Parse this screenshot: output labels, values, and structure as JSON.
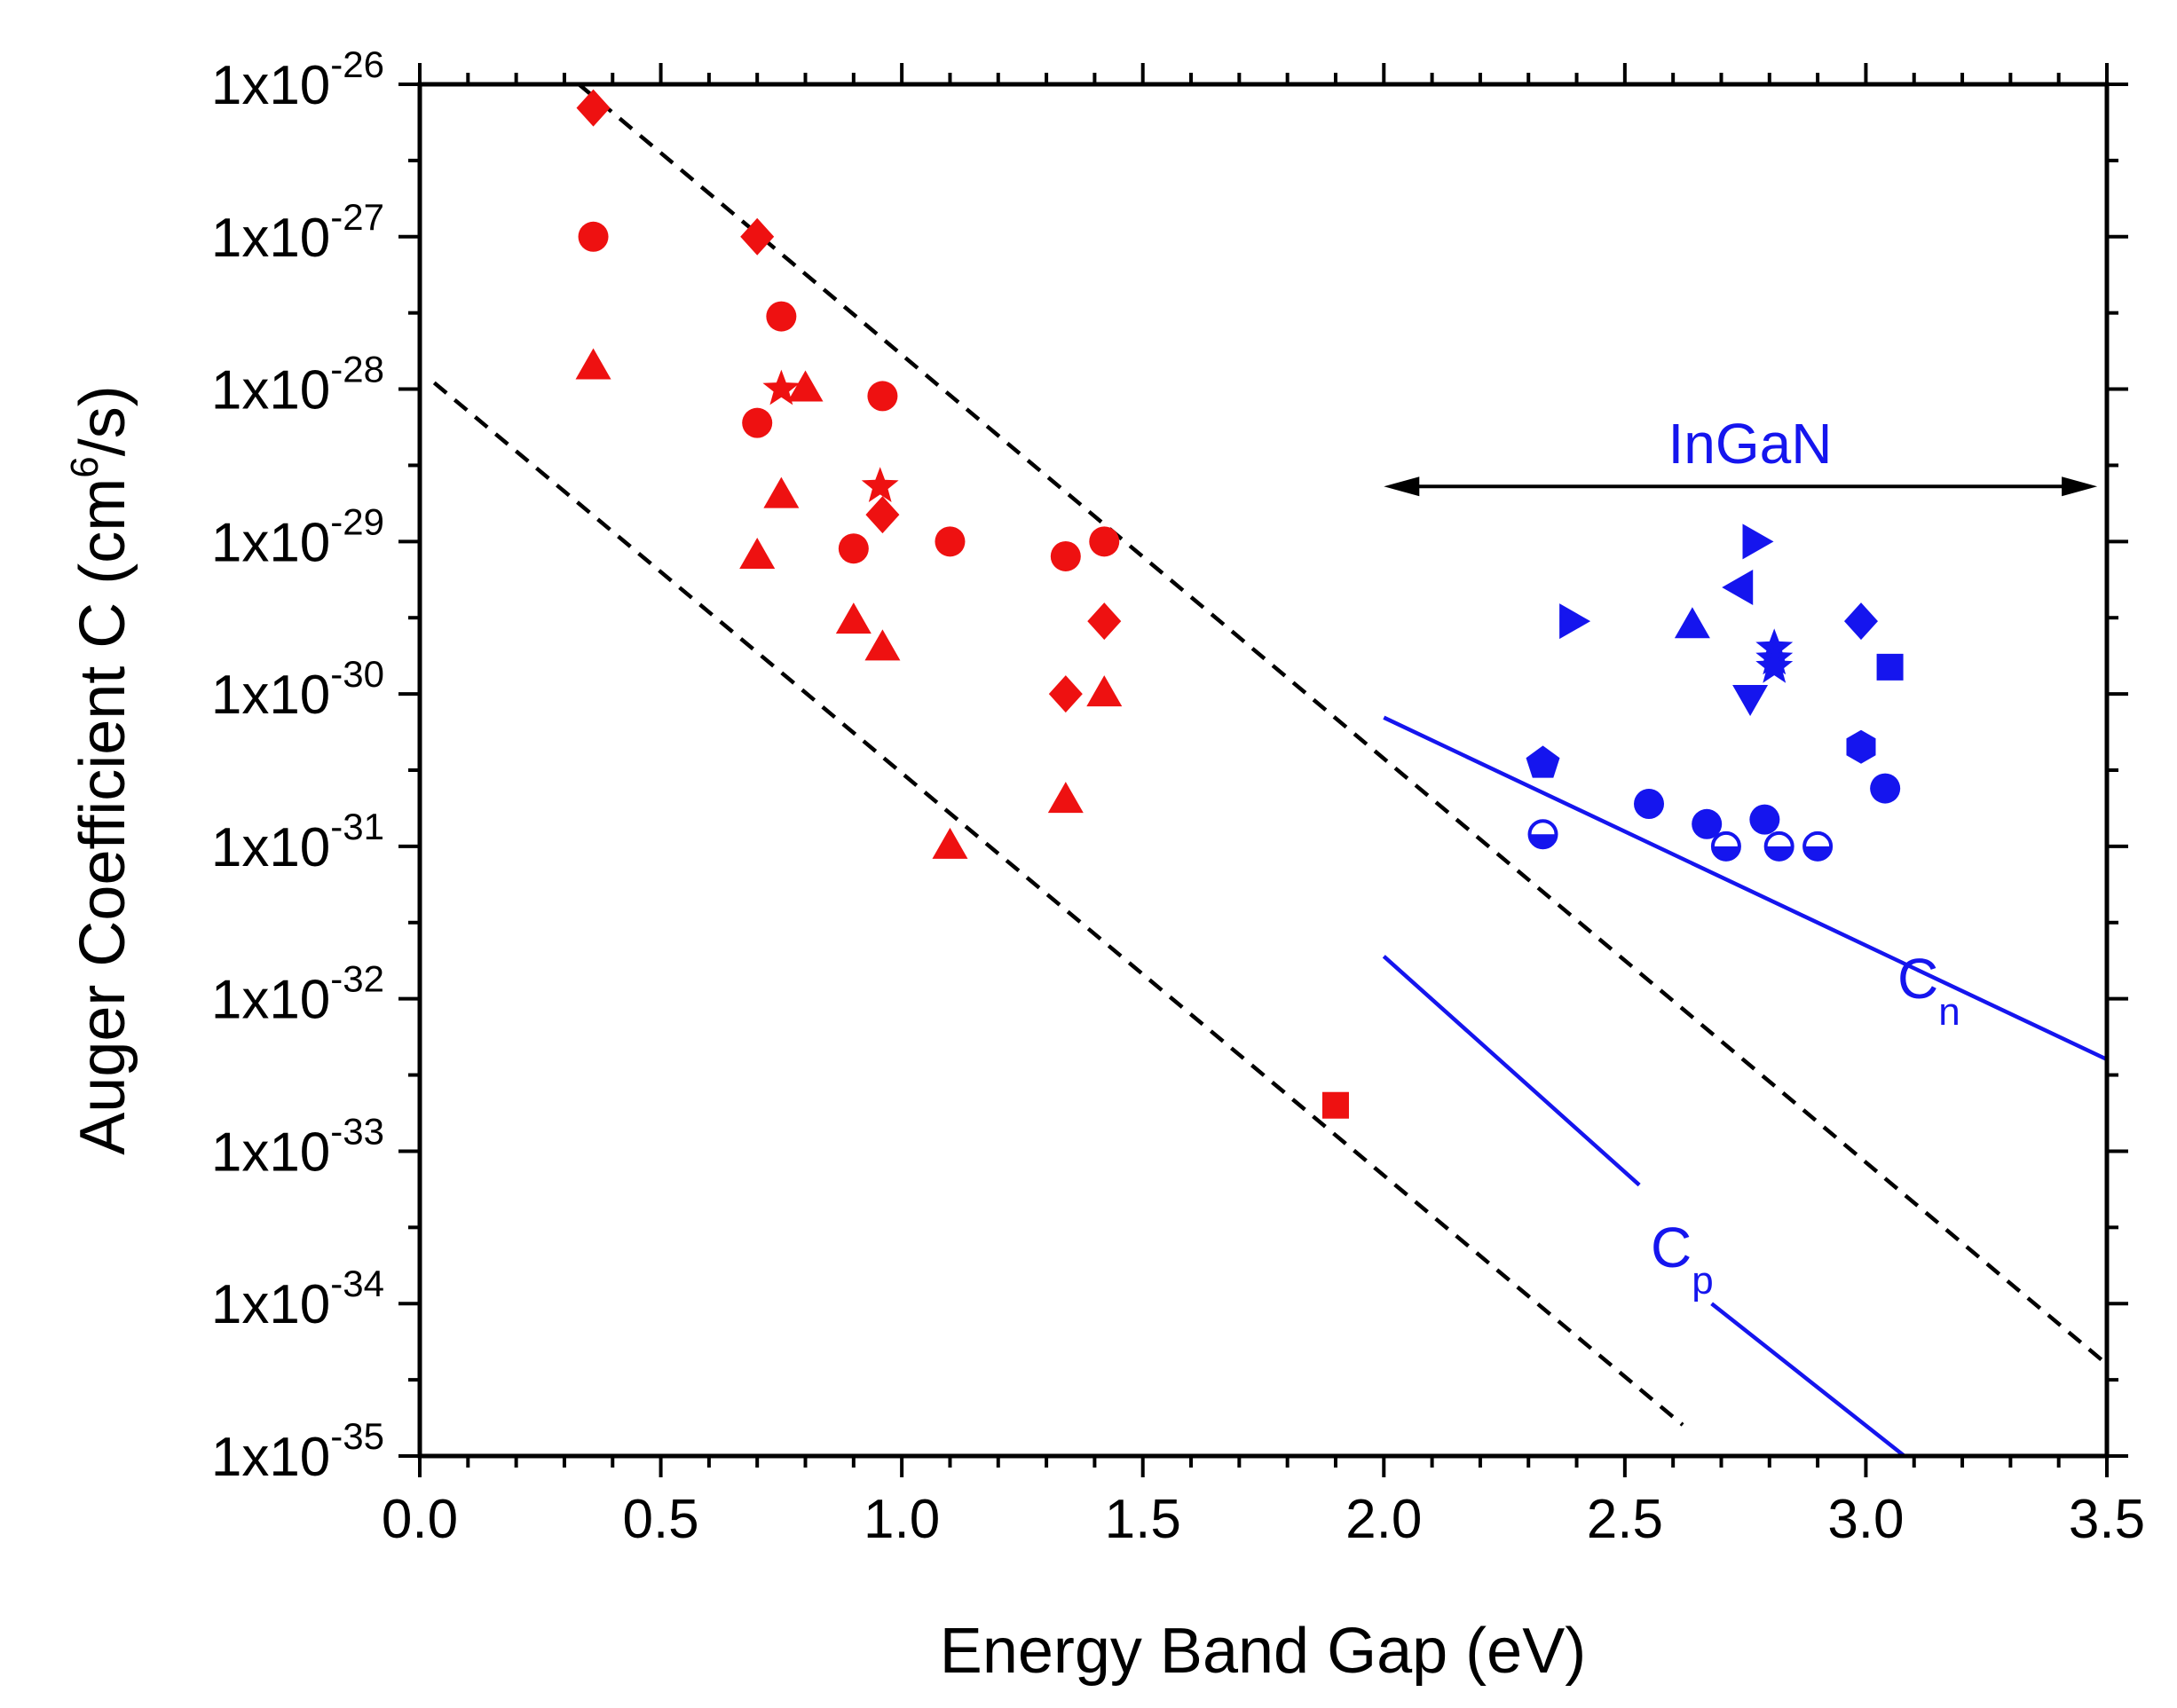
{
  "chart_data": {
    "type": "scatter",
    "xlabel": "Energy Band Gap (eV)",
    "ylabel_parts": [
      "Auger Coefficient C (cm",
      "6",
      "/s)"
    ],
    "xlim": [
      0,
      3.5
    ],
    "ylim_log10": [
      -35,
      -26
    ],
    "x_ticks": [
      "0.0",
      "0.5",
      "1.0",
      "1.5",
      "2.0",
      "2.5",
      "3.0",
      "3.5"
    ],
    "y_tick_base": "1x10",
    "y_tick_exponents": [
      "-26",
      "-27",
      "-28",
      "-29",
      "-30",
      "-31",
      "-32",
      "-33",
      "-34",
      "-35"
    ],
    "colors": {
      "red": "#ee1111",
      "blue": "#1515ee",
      "black": "#000000"
    },
    "series": [
      {
        "name": "red-diamonds",
        "marker": "diamond",
        "color": "red",
        "points": [
          [
            0.36,
            7e-27
          ],
          [
            0.7,
            1e-27
          ],
          [
            0.96,
            1.5e-29
          ],
          [
            1.34,
            1e-30
          ],
          [
            1.42,
            3e-30
          ]
        ]
      },
      {
        "name": "red-circles",
        "marker": "circle",
        "color": "red",
        "points": [
          [
            0.36,
            1e-27
          ],
          [
            0.75,
            3e-28
          ],
          [
            0.7,
            6e-29
          ],
          [
            0.96,
            9e-29
          ],
          [
            1.1,
            1e-29
          ],
          [
            0.9,
            9e-30
          ],
          [
            1.34,
            8e-30
          ],
          [
            1.42,
            1e-29
          ]
        ]
      },
      {
        "name": "red-triangles",
        "marker": "triangle-up",
        "color": "red",
        "points": [
          [
            0.36,
            1.4e-28
          ],
          [
            0.8,
            1e-28
          ],
          [
            0.75,
            2e-29
          ],
          [
            0.7,
            8e-30
          ],
          [
            0.9,
            3e-30
          ],
          [
            0.96,
            2e-30
          ],
          [
            1.42,
            1e-30
          ],
          [
            1.34,
            2e-31
          ],
          [
            1.1,
            1e-31
          ]
        ]
      },
      {
        "name": "red-stars",
        "marker": "star",
        "color": "red",
        "points": [
          [
            0.75,
            1e-28
          ],
          [
            0.955,
            2.3e-29
          ]
        ]
      },
      {
        "name": "red-square",
        "marker": "square",
        "color": "red",
        "points": [
          [
            1.9,
            2e-33
          ]
        ]
      },
      {
        "name": "blue-right-triangles",
        "marker": "triangle-right",
        "color": "blue",
        "points": [
          [
            2.39,
            3e-30
          ],
          [
            2.77,
            1e-29
          ]
        ]
      },
      {
        "name": "blue-left-triangle",
        "marker": "triangle-left",
        "color": "blue",
        "points": [
          [
            2.74,
            5e-30
          ]
        ]
      },
      {
        "name": "blue-up-triangle",
        "marker": "triangle-up",
        "color": "blue",
        "points": [
          [
            2.64,
            2.8e-30
          ]
        ]
      },
      {
        "name": "blue-down-triangle",
        "marker": "triangle-down",
        "color": "blue",
        "points": [
          [
            2.76,
            9.5e-31
          ]
        ]
      },
      {
        "name": "blue-stars",
        "marker": "star",
        "color": "blue",
        "points": [
          [
            2.81,
            2e-30
          ],
          [
            2.81,
            1.7e-30
          ],
          [
            2.81,
            1.5e-30
          ]
        ]
      },
      {
        "name": "blue-diamond",
        "marker": "diamond",
        "color": "blue",
        "points": [
          [
            2.99,
            3e-30
          ]
        ]
      },
      {
        "name": "blue-square",
        "marker": "square",
        "color": "blue",
        "points": [
          [
            3.05,
            1.5e-30
          ]
        ]
      },
      {
        "name": "blue-hexagon",
        "marker": "hexagon",
        "color": "blue",
        "points": [
          [
            2.99,
            4.5e-31
          ]
        ]
      },
      {
        "name": "blue-pentagon",
        "marker": "pentagon",
        "color": "blue",
        "points": [
          [
            2.33,
            3.5e-31
          ]
        ]
      },
      {
        "name": "blue-circles",
        "marker": "circle",
        "color": "blue",
        "points": [
          [
            2.55,
            1.9e-31
          ],
          [
            2.67,
            1.4e-31
          ],
          [
            2.79,
            1.5e-31
          ],
          [
            3.04,
            2.4e-31
          ]
        ]
      },
      {
        "name": "blue-half-circles",
        "marker": "half-circle",
        "color": "blue",
        "points": [
          [
            2.33,
            1.2e-31
          ],
          [
            2.71,
            1e-31
          ],
          [
            2.82,
            1e-31
          ],
          [
            2.9,
            1e-31
          ]
        ]
      }
    ],
    "lines": [
      {
        "name": "upper-dashed-trend",
        "style": "dashed",
        "color": "black",
        "points": [
          [
            0.33,
            1e-26
          ],
          [
            3.5,
            4e-35
          ]
        ]
      },
      {
        "name": "lower-dashed-trend",
        "style": "dashed",
        "color": "black",
        "points": [
          [
            0.03,
            1.1e-28
          ],
          [
            2.62,
            1.6e-35
          ]
        ]
      },
      {
        "name": "cn-line-upper",
        "style": "solid",
        "color": "blue",
        "points": [
          [
            2.0,
            7e-31
          ],
          [
            3.5,
            4e-33
          ]
        ]
      },
      {
        "name": "cp-line-upper",
        "style": "solid",
        "color": "blue",
        "points": [
          [
            2.0,
            1.9e-32
          ],
          [
            2.53,
            6e-34
          ]
        ]
      },
      {
        "name": "cp-line-lower",
        "style": "solid",
        "color": "blue",
        "points": [
          [
            2.68,
            1e-34
          ],
          [
            3.08,
            1e-35
          ]
        ]
      }
    ],
    "annotations": {
      "ingan_label": "InGaN",
      "ingan_arrow_x": [
        2.0,
        3.48
      ],
      "ingan_arrow_y": 2.3e-29,
      "cn_main": "C",
      "cn_sub": "n",
      "cp_main": "C",
      "cp_sub": "p"
    }
  }
}
